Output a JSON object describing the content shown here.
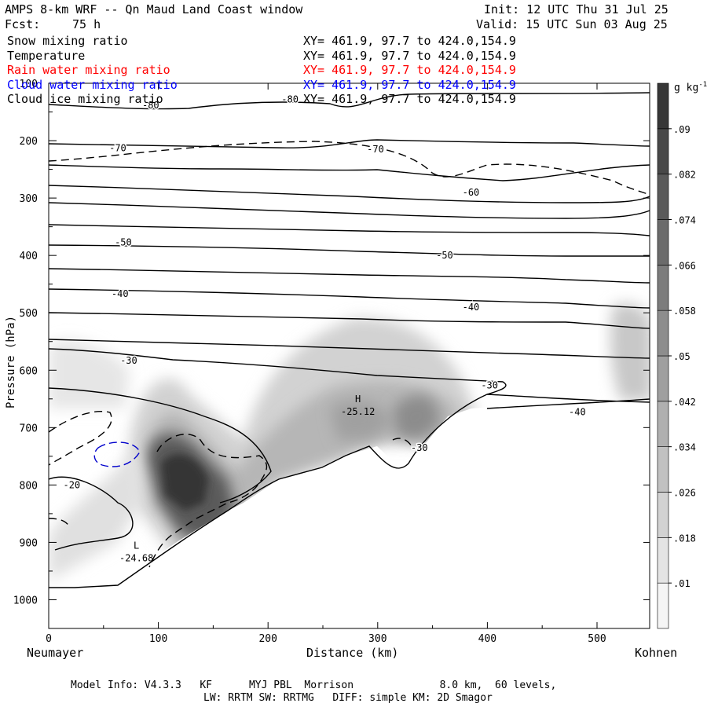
{
  "header": {
    "title": "AMPS 8-km WRF -- Qn Maud Land Coast window",
    "fcst_label": "Fcst:",
    "fcst_value": "75 h",
    "init": "Init: 12 UTC Thu 31 Jul 25",
    "valid": "Valid: 15 UTC Sun 03 Aug 25"
  },
  "fields": [
    {
      "label": "Snow mixing ratio",
      "xy": "XY= 461.9, 97.7 to 424.0,154.9",
      "color": "#000000"
    },
    {
      "label": "Temperature",
      "xy": "XY= 461.9, 97.7 to 424.0,154.9",
      "color": "#000000"
    },
    {
      "label": "Rain water mixing ratio",
      "xy": "XY= 461.9, 97.7 to 424.0,154.9",
      "color": "#ff0000"
    },
    {
      "label": "Cloud water mixing ratio",
      "xy": "XY= 461.9, 97.7 to 424.0,154.9",
      "color": "#0000ff"
    },
    {
      "label": "Cloud ice mixing ratio",
      "xy": "XY= 461.9, 97.7 to 424.0,154.9",
      "color": "#000000"
    }
  ],
  "footer": {
    "line1": "Model Info: V4.3.3   KF      MYJ PBL  Morrison              8.0 km,  60 levels,",
    "line2": "LW: RRTM SW: RRTMG   DIFF: simple KM: 2D Smagor"
  },
  "chart_data": {
    "type": "contour",
    "xlabel": "Distance (km)",
    "ylabel": "Pressure (hPa)",
    "x_start_label": "Neumayer",
    "x_end_label": "Kohnen",
    "xlim": [
      0,
      548
    ],
    "ylim": [
      1050,
      100
    ],
    "x_ticks": [
      0,
      100,
      200,
      300,
      400,
      500
    ],
    "y_ticks": [
      100,
      200,
      300,
      400,
      500,
      600,
      700,
      800,
      900,
      1000
    ],
    "colorbar": {
      "unit": "g kg",
      "unit_exp": "-1",
      "levels": [
        0.01,
        0.018,
        0.026,
        0.034,
        0.042,
        0.05,
        0.058,
        0.066,
        0.074,
        0.082,
        0.09
      ],
      "labels": [
        ".01",
        ".018",
        ".026",
        ".034",
        ".042",
        ".05",
        ".058",
        ".066",
        ".074",
        ".082",
        ".09"
      ]
    },
    "temperature_labels": [
      {
        "text": "-80",
        "x": 93,
        "p": 138
      },
      {
        "text": "-80",
        "x": 220,
        "p": 128
      },
      {
        "text": "-70",
        "x": 63,
        "p": 213
      },
      {
        "text": "-70",
        "x": 298,
        "p": 215
      },
      {
        "text": "-60",
        "x": 385,
        "p": 290
      },
      {
        "text": "-50",
        "x": 68,
        "p": 377
      },
      {
        "text": "-50",
        "x": 361,
        "p": 400
      },
      {
        "text": "-40",
        "x": 65,
        "p": 467
      },
      {
        "text": "-40",
        "x": 385,
        "p": 490
      },
      {
        "text": "-30",
        "x": 73,
        "p": 583
      },
      {
        "text": "-30",
        "x": 402,
        "p": 626
      },
      {
        "text": "-30",
        "x": 338,
        "p": 735
      },
      {
        "text": "-40",
        "x": 482,
        "p": 673
      },
      {
        "text": "-20",
        "x": 21,
        "p": 800
      }
    ],
    "extrema": [
      {
        "type": "H",
        "value": "-25.12",
        "x": 282,
        "p": 675
      },
      {
        "type": "L",
        "value": "-24.68",
        "x": 80,
        "p": 930
      }
    ]
  }
}
